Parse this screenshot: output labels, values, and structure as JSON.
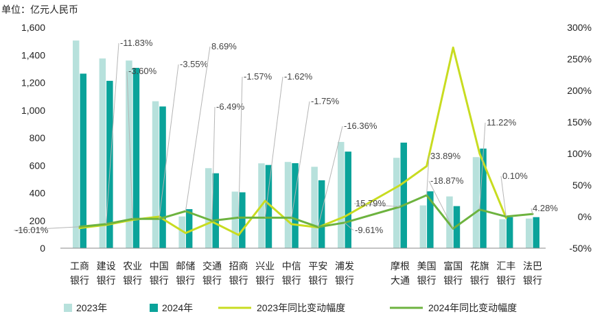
{
  "chart_data": {
    "type": "bar",
    "unit_label": "单位：亿元人民币",
    "categories": [
      [
        "工商",
        "银行"
      ],
      [
        "建设",
        "银行"
      ],
      [
        "农业",
        "银行"
      ],
      [
        "中国",
        "银行"
      ],
      [
        "邮储",
        "银行"
      ],
      [
        "交通",
        "银行"
      ],
      [
        "招商",
        "银行"
      ],
      [
        "兴业",
        "银行"
      ],
      [
        "中信",
        "银行"
      ],
      [
        "平安",
        "银行"
      ],
      [
        "浦发",
        "银行"
      ],
      [
        "摩根",
        "大通"
      ],
      [
        "美国",
        "银行"
      ],
      [
        "富国",
        "银行"
      ],
      [
        "花旗",
        "银行"
      ],
      [
        "汇丰",
        "银行"
      ],
      [
        "法巴",
        "银行"
      ]
    ],
    "y_left": {
      "ylim": [
        0,
        1600
      ],
      "ticks": [
        "0",
        "200",
        "400",
        "600",
        "800",
        "1,000",
        "1,200",
        "1,400",
        "1,600"
      ]
    },
    "y_right": {
      "ylim": [
        -50,
        300
      ],
      "ticks": [
        "-50%",
        "0%",
        "50%",
        "100%",
        "150%",
        "200%",
        "250%",
        "300%"
      ]
    },
    "series": [
      {
        "name": "2023年",
        "kind": "bar",
        "color": "#b7e1dc",
        "values": [
          1505,
          1375,
          1360,
          1065,
          230,
          580,
          410,
          615,
          625,
          590,
          770,
          655,
          310,
          375,
          660,
          210,
          215
        ]
      },
      {
        "name": "2024年",
        "kind": "bar",
        "color": "#0aa39a",
        "values": [
          1265,
          1213,
          1307,
          1027,
          283,
          543,
          405,
          603,
          616,
          492,
          700,
          765,
          412,
          305,
          722,
          225,
          225
        ]
      },
      {
        "name": "2023年同比变动幅度",
        "kind": "line",
        "color": "#c8dc20",
        "values": [
          -18,
          -13,
          -5,
          0,
          -26,
          -8,
          -29,
          25,
          -12,
          -17,
          0,
          50,
          80,
          268,
          100,
          -2,
          null
        ]
      },
      {
        "name": "2024年同比变动幅度",
        "kind": "line",
        "color": "#6db33f",
        "values": [
          -16.01,
          -11.83,
          -3.6,
          -3.55,
          8.69,
          -6.49,
          -1.57,
          -1.62,
          -1.75,
          -16.36,
          -9.61,
          15.79,
          33.89,
          -18.87,
          11.22,
          0.1,
          4.28
        ]
      }
    ],
    "annotations": [
      "-16.01%",
      "-11.83%",
      "-3.60%",
      "-3.55%",
      "8.69%",
      "-6.49%",
      "-1.57%",
      "-1.62%",
      "-1.75%",
      "-16.36%",
      "-9.61%",
      "15.79%",
      "33.89%",
      "-18.87%",
      "11.22%",
      "0.10%",
      "4.28%"
    ],
    "legend_position": "bottom",
    "grid": false
  }
}
